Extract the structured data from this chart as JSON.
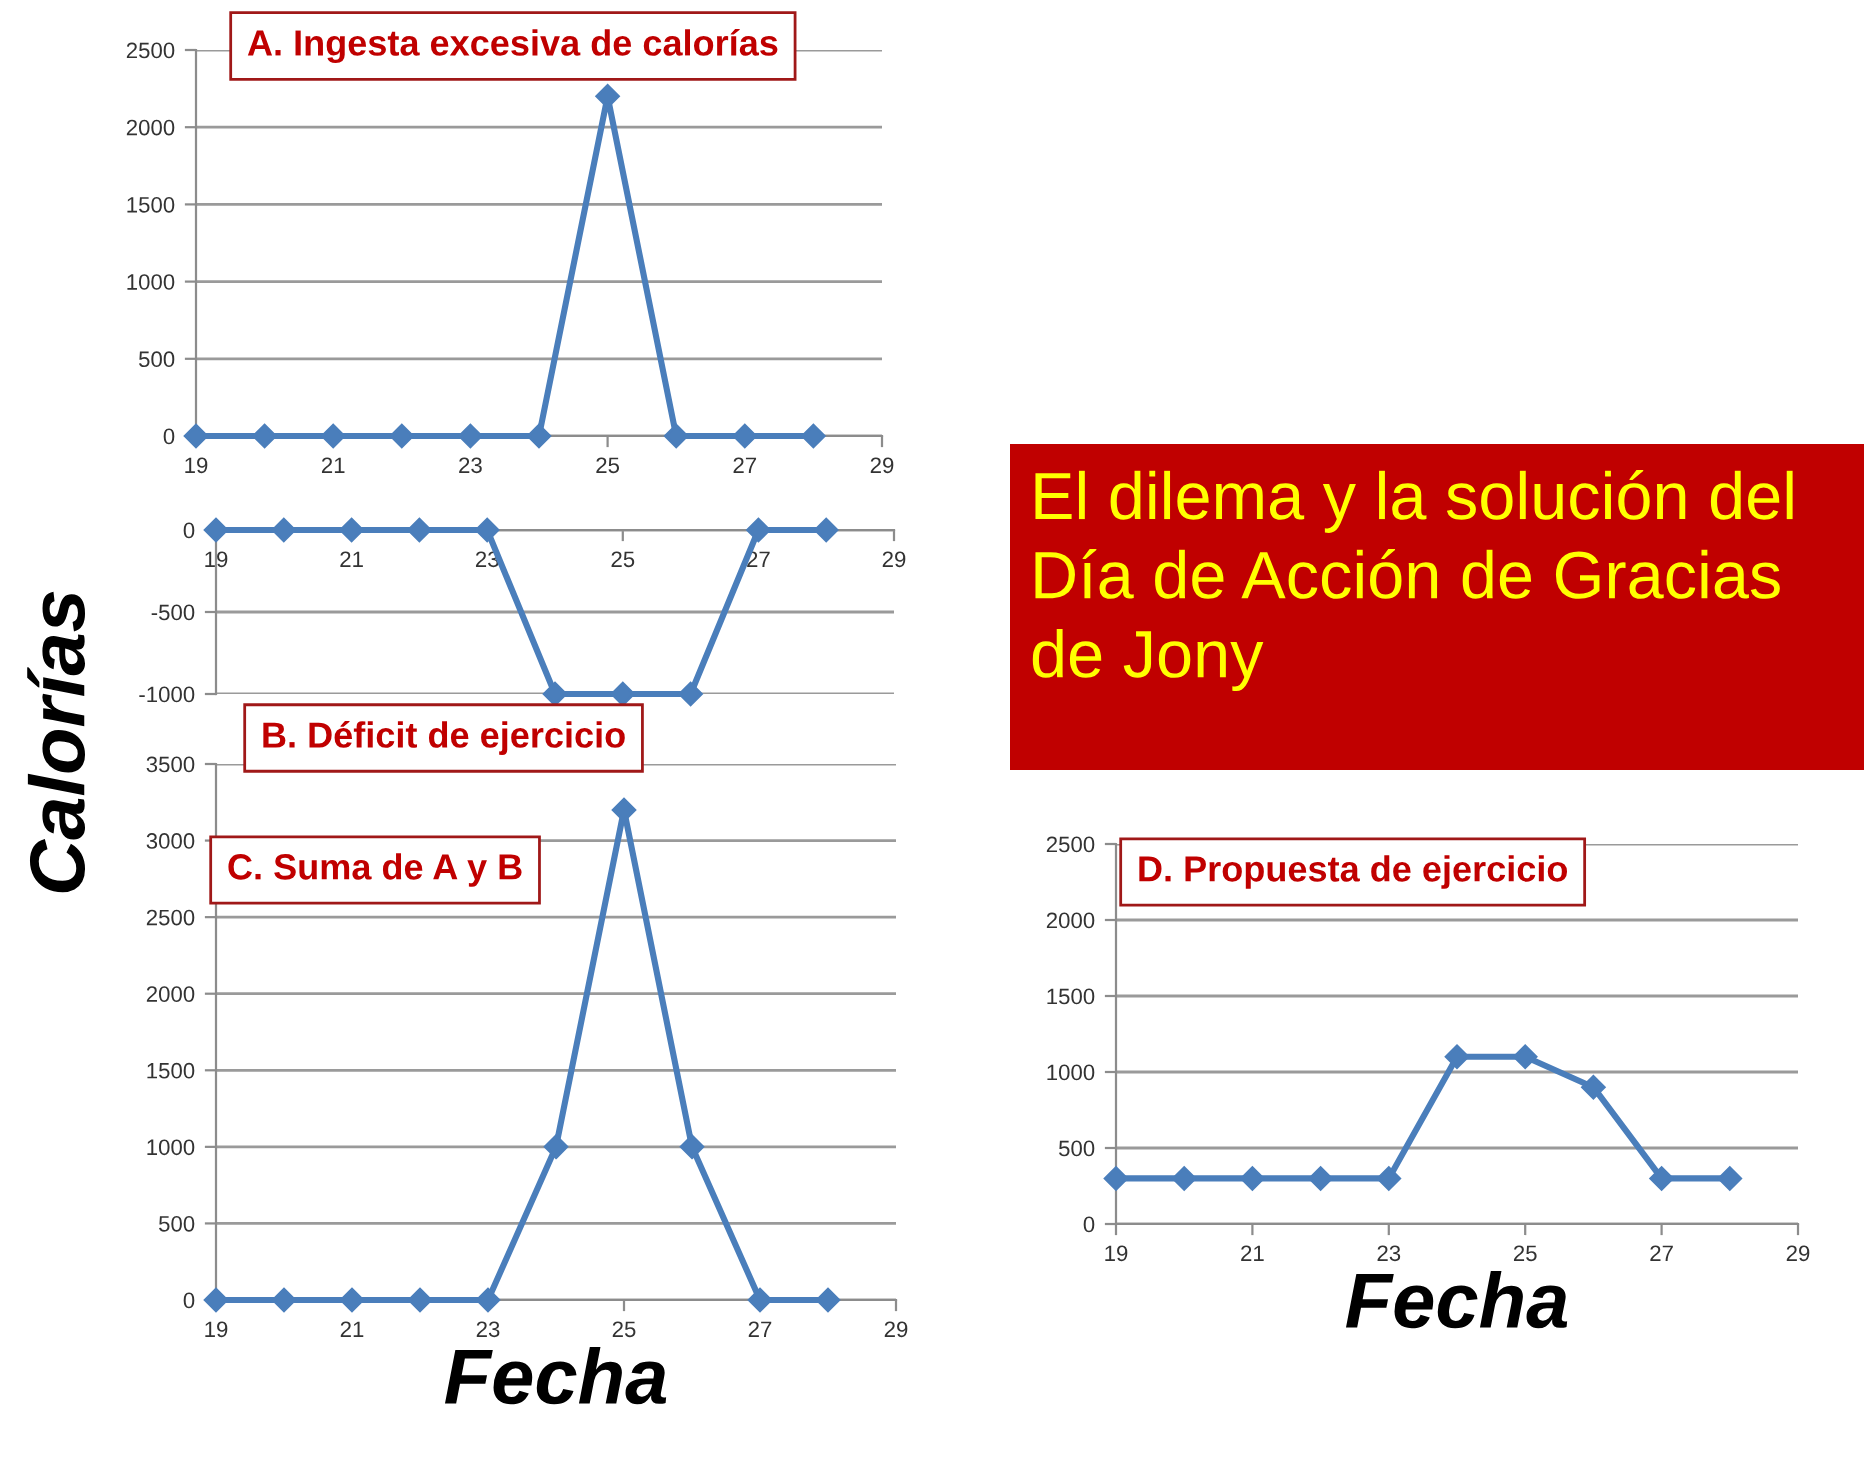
{
  "chart_data": [
    {
      "type": "line",
      "title": "A. Ingesta excesiva de calorías",
      "x": [
        19,
        20,
        21,
        22,
        23,
        24,
        25,
        26,
        27,
        28
      ],
      "xlim": [
        19,
        29
      ],
      "xticks": [
        19,
        21,
        23,
        25,
        27,
        29
      ],
      "ylim": [
        0,
        2500
      ],
      "yticks": [
        0,
        500,
        1000,
        1500,
        2000,
        2500
      ],
      "grid": "y",
      "marker": "diamond",
      "series": [
        {
          "color": "#4a7ebb",
          "values": [
            0,
            0,
            0,
            0,
            0,
            0,
            2200,
            0,
            0,
            0
          ]
        }
      ]
    },
    {
      "type": "line",
      "title": "B. Déficit de ejercicio",
      "x": [
        19,
        20,
        21,
        22,
        23,
        24,
        25,
        26,
        27,
        28
      ],
      "xlim": [
        19,
        29
      ],
      "xticks": [
        19,
        21,
        23,
        25,
        27,
        29
      ],
      "ylim": [
        -1000,
        0
      ],
      "yticks": [
        -1000,
        -500,
        0
      ],
      "grid": "y",
      "marker": "diamond",
      "series": [
        {
          "color": "#4a7ebb",
          "values": [
            0,
            0,
            0,
            0,
            0,
            -1000,
            -1000,
            -1000,
            0,
            0
          ]
        }
      ]
    },
    {
      "type": "other",
      "title": "El dilema y la solución del Día de Acción de Gracias de Jony"
    },
    {
      "type": "line",
      "title": "C. Suma de A y B",
      "xlabel": "Fecha",
      "ylabel": "Calorías",
      "x": [
        19,
        20,
        21,
        22,
        23,
        24,
        25,
        26,
        27,
        28
      ],
      "xlim": [
        19,
        29
      ],
      "xticks": [
        19,
        21,
        23,
        25,
        27,
        29
      ],
      "ylim": [
        0,
        3500
      ],
      "yticks": [
        0,
        500,
        1000,
        1500,
        2000,
        2500,
        3000,
        3500
      ],
      "grid": "y",
      "marker": "diamond",
      "series": [
        {
          "color": "#4a7ebb",
          "values": [
            0,
            0,
            0,
            0,
            0,
            1000,
            3200,
            1000,
            0,
            0
          ]
        }
      ]
    },
    {
      "type": "line",
      "title": "D. Propuesta de ejercicio",
      "xlabel": "Fecha",
      "x": [
        19,
        20,
        21,
        22,
        23,
        24,
        25,
        26,
        27,
        28
      ],
      "xlim": [
        19,
        29
      ],
      "xticks": [
        19,
        21,
        23,
        25,
        27,
        29
      ],
      "ylim": [
        0,
        2500
      ],
      "yticks": [
        0,
        500,
        1000,
        1500,
        2000,
        2500
      ],
      "grid": "y",
      "marker": "diamond",
      "series": [
        {
          "color": "#4a7ebb",
          "values": [
            300,
            300,
            300,
            300,
            300,
            1100,
            1100,
            900,
            300,
            300
          ]
        }
      ]
    }
  ]
}
